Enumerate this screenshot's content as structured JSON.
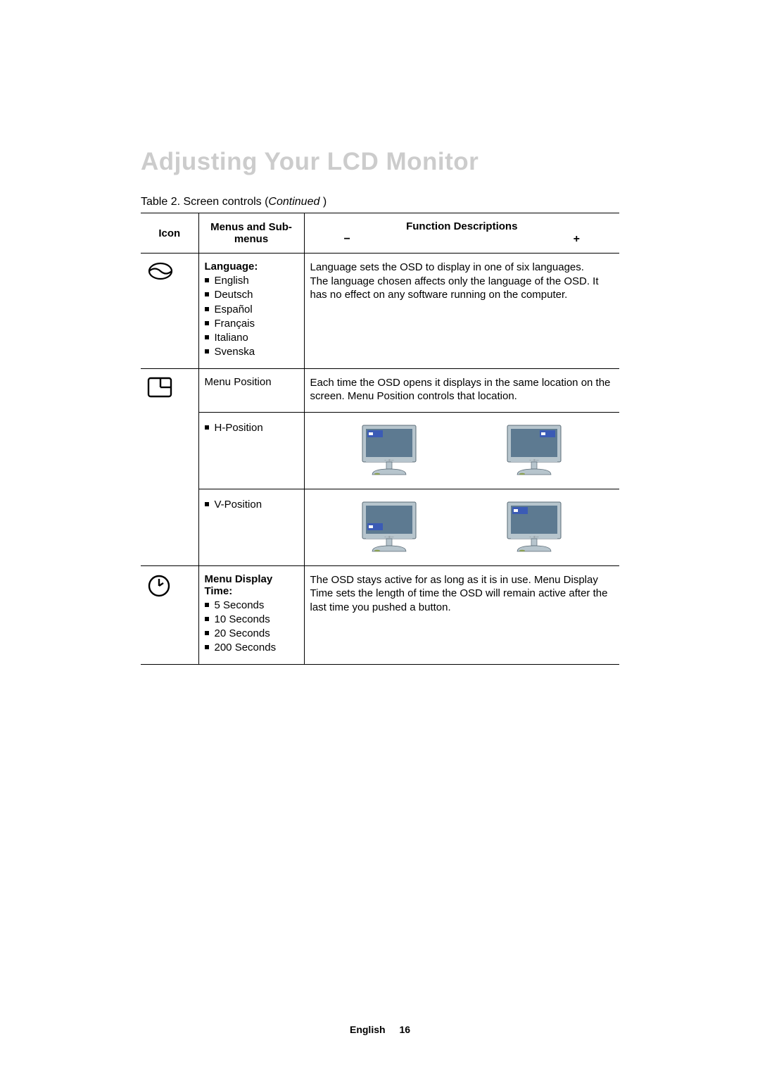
{
  "page_title": "Adjusting Your LCD Monitor",
  "table_caption_prefix": "Table 2.  Screen controls (",
  "table_caption_italic": "Continued",
  "table_caption_suffix": " )",
  "headers": {
    "icon": "Icon",
    "menus": "Menus and Sub-menus",
    "fn": "Function Descriptions",
    "minus": "−",
    "plus": "+"
  },
  "rows": {
    "language": {
      "title": "Language:",
      "items": [
        "English",
        "Deutsch",
        "Español",
        "Français",
        "Italiano",
        "Svenska"
      ],
      "desc": "Language sets the OSD to display in one of six languages.\nThe language chosen affects only the language of the OSD. It has no effect on any software running on the computer."
    },
    "menu_position": {
      "title": "Menu Position",
      "desc": "Each time the OSD opens it displays in the same location on the screen. Menu Position controls that location.",
      "h_label": "H-Position",
      "v_label": "V-Position"
    },
    "menu_display_time": {
      "title": "Menu Display Time:",
      "items": [
        "5 Seconds",
        "10 Seconds",
        "20 Seconds",
        "200 Seconds"
      ],
      "desc": "The OSD stays active for as long as it is in use. Menu Display Time sets the length of time the OSD will remain active after the last time you pushed a button."
    }
  },
  "footer": {
    "lang": "English",
    "page": "16"
  },
  "colors": {
    "title_gray": "#cccccc",
    "monitor_body": "#b7c5cd",
    "monitor_screen": "#5d7a91",
    "monitor_base": "#b7c5cd",
    "osd_blue": "#3b5bb5"
  },
  "monitor_svg": {
    "width": 88,
    "height": 76
  }
}
